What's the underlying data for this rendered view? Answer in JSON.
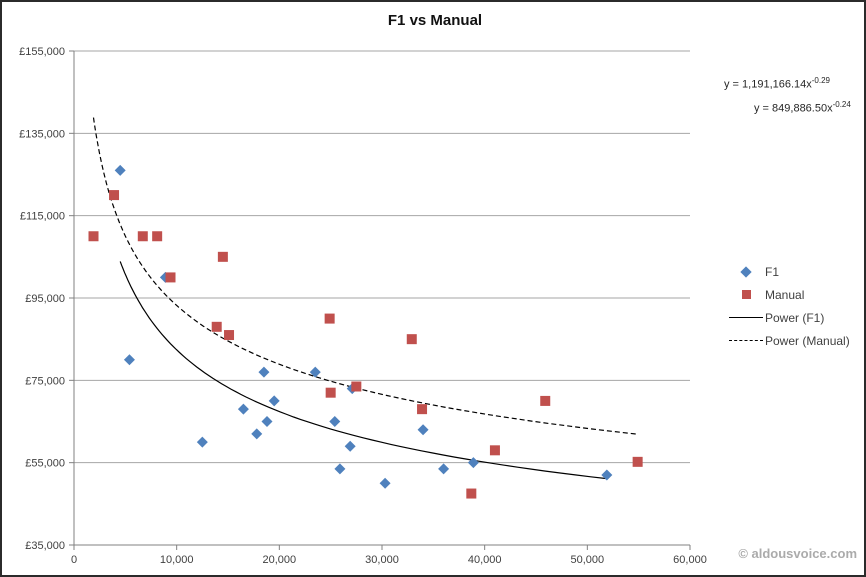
{
  "title": "F1 vs Manual",
  "watermark": "© aldousvoice.com",
  "equations": [
    {
      "base": "y = 1,191,166.14x",
      "exponent": "-0.29"
    },
    {
      "base": "y = 849,886.50x",
      "exponent": "-0.24"
    }
  ],
  "legend": {
    "items": [
      {
        "label": "F1",
        "marker": "diamond"
      },
      {
        "label": "Manual",
        "marker": "square"
      },
      {
        "label": "Power (F1)",
        "marker": "solid-line"
      },
      {
        "label": "Power (Manual)",
        "marker": "dashed-line"
      }
    ]
  },
  "colors": {
    "f1": "#4F81BD",
    "manual": "#C0504D",
    "trendline": "#000000",
    "gridline": "#a6a6a6",
    "axis": "#808080",
    "tick_text": "#3f3f3f"
  },
  "chart_data": {
    "type": "scatter",
    "title": "F1 vs Manual",
    "xlabel": "",
    "ylabel": "",
    "xlim": [
      0,
      60000
    ],
    "ylim": [
      35000,
      155000
    ],
    "grid": "horizontal",
    "legend_position": "right",
    "x_ticks": {
      "values": [
        0,
        10000,
        20000,
        30000,
        40000,
        50000,
        60000
      ],
      "labels": [
        "0",
        "10,000",
        "20,000",
        "30,000",
        "40,000",
        "50,000",
        "60,000"
      ]
    },
    "y_ticks": {
      "values": [
        35000,
        55000,
        75000,
        95000,
        115000,
        135000,
        155000
      ],
      "labels": [
        "£35,000",
        "£55,000",
        "£75,000",
        "£95,000",
        "£115,000",
        "£135,000",
        "£155,000"
      ]
    },
    "series": [
      {
        "name": "F1",
        "marker": "diamond",
        "color": "#4F81BD",
        "points": [
          [
            4500,
            126000
          ],
          [
            5400,
            80000
          ],
          [
            8900,
            100000
          ],
          [
            12500,
            60000
          ],
          [
            16500,
            68000
          ],
          [
            17800,
            62000
          ],
          [
            18500,
            77000
          ],
          [
            18800,
            65000
          ],
          [
            19500,
            70000
          ],
          [
            23500,
            77000
          ],
          [
            25400,
            65000
          ],
          [
            25900,
            53500
          ],
          [
            26900,
            59000
          ],
          [
            27100,
            73000
          ],
          [
            30300,
            50000
          ],
          [
            34000,
            63000
          ],
          [
            36000,
            53500
          ],
          [
            38900,
            55000
          ],
          [
            51900,
            52000
          ]
        ]
      },
      {
        "name": "Manual",
        "marker": "square",
        "color": "#C0504D",
        "points": [
          [
            1900,
            110000
          ],
          [
            3900,
            120000
          ],
          [
            6700,
            110000
          ],
          [
            8100,
            110000
          ],
          [
            9400,
            100000
          ],
          [
            13900,
            88000
          ],
          [
            14500,
            105000
          ],
          [
            15100,
            86000
          ],
          [
            24900,
            90000
          ],
          [
            25000,
            72000
          ],
          [
            27500,
            73500
          ],
          [
            32900,
            85000
          ],
          [
            33900,
            68000
          ],
          [
            38700,
            47500
          ],
          [
            41000,
            58000
          ],
          [
            45900,
            70000
          ],
          [
            54900,
            55200
          ]
        ]
      }
    ],
    "trendlines": [
      {
        "name": "Power (F1)",
        "style": "solid",
        "color": "#000000",
        "coefficient": 1191166.14,
        "exponent": -0.29,
        "x_range": [
          4500,
          51900
        ],
        "equation_text": "y = 1,191,166.14x^-0.29"
      },
      {
        "name": "Power (Manual)",
        "style": "dashed",
        "color": "#000000",
        "coefficient": 849886.5,
        "exponent": -0.24,
        "x_range": [
          1900,
          54900
        ],
        "equation_text": "y = 849,886.50x^-0.24"
      }
    ]
  }
}
